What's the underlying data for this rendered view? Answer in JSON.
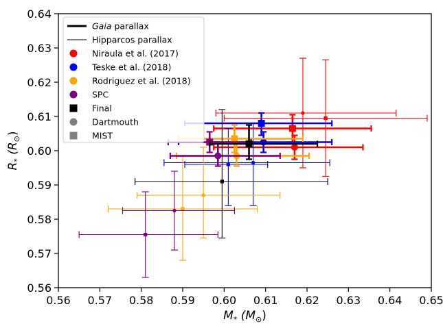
{
  "chart_data": {
    "type": "scatter",
    "xlabel_main": "M",
    "xlabel_sub": "*",
    "xlabel_paren": "(M",
    "xlabel_sun": "⊙",
    "xlabel_close": ")",
    "ylabel_main": "R",
    "ylabel_sub": "*",
    "ylabel_paren": "(R",
    "ylabel_sun": "⊙",
    "ylabel_close": ")",
    "xlim": [
      0.56,
      0.65
    ],
    "ylim": [
      0.56,
      0.64
    ],
    "xticks": [
      "0.56",
      "0.57",
      "0.58",
      "0.59",
      "0.60",
      "0.61",
      "0.62",
      "0.63",
      "0.64",
      "0.65"
    ],
    "yticks": [
      "0.56",
      "0.57",
      "0.58",
      "0.59",
      "0.60",
      "0.61",
      "0.62",
      "0.63",
      "0.64"
    ],
    "legend_placement": "top-left",
    "legend": [
      {
        "label": "Gaia",
        "label_rest": " parallax",
        "italic_first": true,
        "kind": "line-thick",
        "color": "#000000"
      },
      {
        "label": "Hipparcos parallax",
        "label_rest": "",
        "italic_first": false,
        "kind": "line-thin",
        "color": "#000000"
      },
      {
        "label": "Niraula et al. (2017)",
        "label_rest": "",
        "italic_first": false,
        "kind": "circle",
        "color": "#ff0000"
      },
      {
        "label": "Teske et al. (2018)",
        "label_rest": "",
        "italic_first": false,
        "kind": "circle",
        "color": "#0000ff"
      },
      {
        "label": "Rodriguez et al. (2018)",
        "label_rest": "",
        "italic_first": false,
        "kind": "circle",
        "color": "#ffa500"
      },
      {
        "label": "SPC",
        "label_rest": "",
        "italic_first": false,
        "kind": "circle",
        "color": "#800080"
      },
      {
        "label": "Final",
        "label_rest": "",
        "italic_first": false,
        "kind": "square",
        "color": "#000000"
      },
      {
        "label": "Dartmouth",
        "label_rest": "",
        "italic_first": false,
        "kind": "circle",
        "color": "#808080"
      },
      {
        "label": "MIST",
        "label_rest": "",
        "italic_first": false,
        "kind": "square",
        "color": "#808080"
      }
    ],
    "points": [
      {
        "series": "Niraula et al. (2017)",
        "color": "#ff0000",
        "parallax": "Gaia",
        "marker": "circle",
        "x": 0.617,
        "y": 0.601,
        "xerr_lo": 0.0195,
        "xerr_hi": 0.0165,
        "yerr_lo": 0.0035,
        "yerr_hi": 0.0035
      },
      {
        "series": "Niraula et al. (2017)",
        "color": "#ff0000",
        "parallax": "Gaia",
        "marker": "square",
        "x": 0.6165,
        "y": 0.6065,
        "xerr_lo": 0.019,
        "xerr_hi": 0.019,
        "yerr_lo": 0.004,
        "yerr_hi": 0.004
      },
      {
        "series": "Niraula et al. (2017)",
        "color": "#ff0000",
        "parallax": "Hipparcos",
        "marker": "circle",
        "x": 0.619,
        "y": 0.611,
        "xerr_lo": 0.021,
        "xerr_hi": 0.0225,
        "yerr_lo": 0.016,
        "yerr_hi": 0.016
      },
      {
        "series": "Niraula et al. (2017)",
        "color": "#ff0000",
        "parallax": "Hipparcos",
        "marker": "square",
        "x": 0.6245,
        "y": 0.6095,
        "xerr_lo": 0.0245,
        "xerr_hi": 0.0245,
        "yerr_lo": 0.017,
        "yerr_hi": 0.017
      },
      {
        "series": "Teske et al. (2018)",
        "color": "#0000ff",
        "parallax": "Gaia",
        "marker": "square",
        "x": 0.609,
        "y": 0.608,
        "xerr_lo": 0.0185,
        "xerr_hi": 0.017,
        "yerr_lo": 0.0035,
        "yerr_hi": 0.003
      },
      {
        "series": "Teske et al. (2018)",
        "color": "#0000ff",
        "parallax": "Gaia",
        "marker": "circle",
        "x": 0.6095,
        "y": 0.6025,
        "xerr_lo": 0.0205,
        "xerr_hi": 0.0165,
        "yerr_lo": 0.003,
        "yerr_hi": 0.003
      },
      {
        "series": "Teske et al. (2018)",
        "color": "#0000ff",
        "parallax": "Hipparcos",
        "marker": "square",
        "x": 0.601,
        "y": 0.596,
        "xerr_lo": 0.0105,
        "xerr_hi": 0.0095,
        "yerr_lo": 0.012,
        "yerr_hi": 0.0105
      },
      {
        "series": "Teske et al. (2018)",
        "color": "#0000ff",
        "parallax": "Hipparcos",
        "marker": "circle",
        "x": 0.607,
        "y": 0.5965,
        "xerr_lo": 0.0215,
        "xerr_hi": 0.0185,
        "yerr_lo": 0.0125,
        "yerr_hi": 0.0115
      },
      {
        "series": "Rodriguez et al. (2018)",
        "color": "#ffa500",
        "parallax": "Gaia",
        "marker": "square",
        "x": 0.6025,
        "y": 0.6035,
        "xerr_lo": 0.0135,
        "xerr_hi": 0.0165,
        "yerr_lo": 0.004,
        "yerr_hi": 0.004
      },
      {
        "series": "Rodriguez et al. (2018)",
        "color": "#ffa500",
        "parallax": "Gaia",
        "marker": "circle",
        "x": 0.603,
        "y": 0.5985,
        "xerr_lo": 0.0145,
        "xerr_hi": 0.0175,
        "yerr_lo": 0.003,
        "yerr_hi": 0.0035
      },
      {
        "series": "Rodriguez et al. (2018)",
        "color": "#ffa500",
        "parallax": "Hipparcos",
        "marker": "circle",
        "x": 0.595,
        "y": 0.587,
        "xerr_lo": 0.016,
        "xerr_hi": 0.0185,
        "yerr_lo": 0.0125,
        "yerr_hi": 0.014
      },
      {
        "series": "Rodriguez et al. (2018)",
        "color": "#ffa500",
        "parallax": "Hipparcos",
        "marker": "square",
        "x": 0.59,
        "y": 0.583,
        "xerr_lo": 0.018,
        "xerr_hi": 0.018,
        "yerr_lo": 0.015,
        "yerr_hi": 0.0155
      },
      {
        "series": "SPC",
        "color": "#800080",
        "parallax": "Gaia",
        "marker": "square",
        "x": 0.5965,
        "y": 0.6025,
        "xerr_lo": 0.01,
        "xerr_hi": 0.01,
        "yerr_lo": 0.003,
        "yerr_hi": 0.003
      },
      {
        "series": "SPC",
        "color": "#800080",
        "parallax": "Gaia",
        "marker": "circle",
        "x": 0.5985,
        "y": 0.5985,
        "xerr_lo": 0.0115,
        "xerr_hi": 0.015,
        "yerr_lo": 0.003,
        "yerr_hi": 0.0035
      },
      {
        "series": "SPC",
        "color": "#800080",
        "parallax": "Hipparcos",
        "marker": "circle",
        "x": 0.588,
        "y": 0.5825,
        "xerr_lo": 0.0125,
        "xerr_hi": 0.0145,
        "yerr_lo": 0.0115,
        "yerr_hi": 0.0115
      },
      {
        "series": "SPC",
        "color": "#800080",
        "parallax": "Hipparcos",
        "marker": "square",
        "x": 0.581,
        "y": 0.5755,
        "xerr_lo": 0.016,
        "xerr_hi": 0.0175,
        "yerr_lo": 0.0125,
        "yerr_hi": 0.0125
      },
      {
        "series": "Final",
        "color": "#000000",
        "parallax": "Gaia",
        "marker": "square",
        "x": 0.606,
        "y": 0.602,
        "xerr_lo": 0.0095,
        "xerr_hi": 0.0165,
        "yerr_lo": 0.0045,
        "yerr_hi": 0.0055
      },
      {
        "series": "Final",
        "color": "#000000",
        "parallax": "Hipparcos",
        "marker": "square",
        "x": 0.5995,
        "y": 0.591,
        "xerr_lo": 0.021,
        "xerr_hi": 0.0255,
        "yerr_lo": 0.0165,
        "yerr_hi": 0.021
      }
    ]
  }
}
